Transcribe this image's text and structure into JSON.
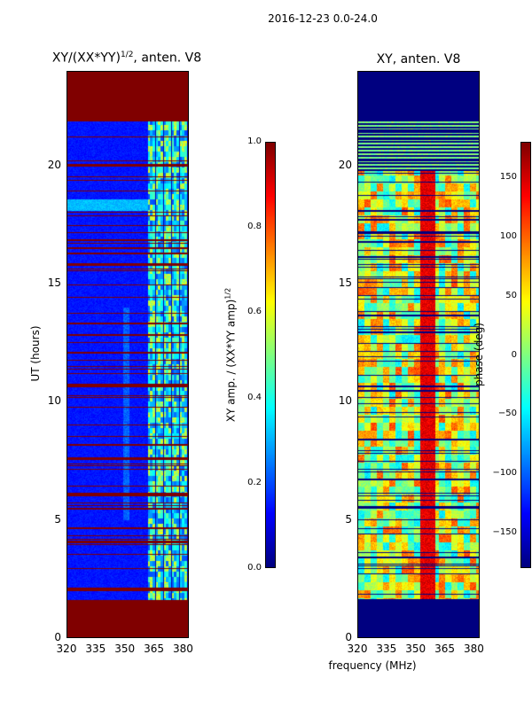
{
  "suptitle": "2016-12-23 0.0-24.0",
  "colors": {
    "jet_dark_blue": "#00007f",
    "jet_blue": "#0000ff",
    "jet_cyan": "#00ffff",
    "jet_yellow": "#ffff00",
    "jet_red": "#ff0000",
    "jet_dark_red": "#7f0000"
  },
  "chart_data": [
    {
      "type": "heatmap",
      "title_main": "XY/(XX*YY)",
      "title_sup": "1/2",
      "title_suffix": ", anten. V8",
      "xlabel": "",
      "ylabel": "UT (hours)",
      "xlim": [
        320,
        383
      ],
      "ylim": [
        0,
        24
      ],
      "xticks": [
        "320",
        "335",
        "350",
        "365",
        "380"
      ],
      "yticks": [
        "0",
        "5",
        "10",
        "15",
        "20"
      ],
      "ytick_values": [
        0,
        5,
        10,
        15,
        20
      ],
      "xtick_values": [
        320,
        335,
        350,
        365,
        380
      ],
      "data_range_hours": [
        1.6,
        21.9
      ],
      "fill_outside_value": 1.0,
      "colorbar": {
        "label_main": "XY amp. / (XX*YY amp)",
        "label_sup": "1/2",
        "range": [
          0.0,
          1.0
        ],
        "ticks": [
          "0.0",
          "0.2",
          "0.4",
          "0.6",
          "0.8",
          "1.0"
        ],
        "tick_values": [
          0.0,
          0.2,
          0.4,
          0.6,
          0.8,
          1.0
        ]
      }
    },
    {
      "type": "heatmap",
      "title": "XY, anten. V8",
      "xlabel": "frequency (MHz)",
      "ylabel": "",
      "xlim": [
        320,
        383
      ],
      "ylim": [
        0,
        24
      ],
      "xticks": [
        "320",
        "335",
        "350",
        "365",
        "380"
      ],
      "yticks": [
        "0",
        "5",
        "10",
        "15",
        "20"
      ],
      "ytick_values": [
        0,
        5,
        10,
        15,
        20
      ],
      "xtick_values": [
        320,
        335,
        350,
        365,
        380
      ],
      "data_range_hours": [
        1.6,
        21.9
      ],
      "fill_outside_value": -180,
      "colorbar": {
        "label": "phase (deg)",
        "range": [
          -180,
          180
        ],
        "ticks": [
          "−150",
          "−100",
          "−50",
          "0",
          "50",
          "100",
          "150"
        ],
        "tick_values": [
          -150,
          -100,
          -50,
          0,
          50,
          100,
          150
        ]
      }
    }
  ]
}
